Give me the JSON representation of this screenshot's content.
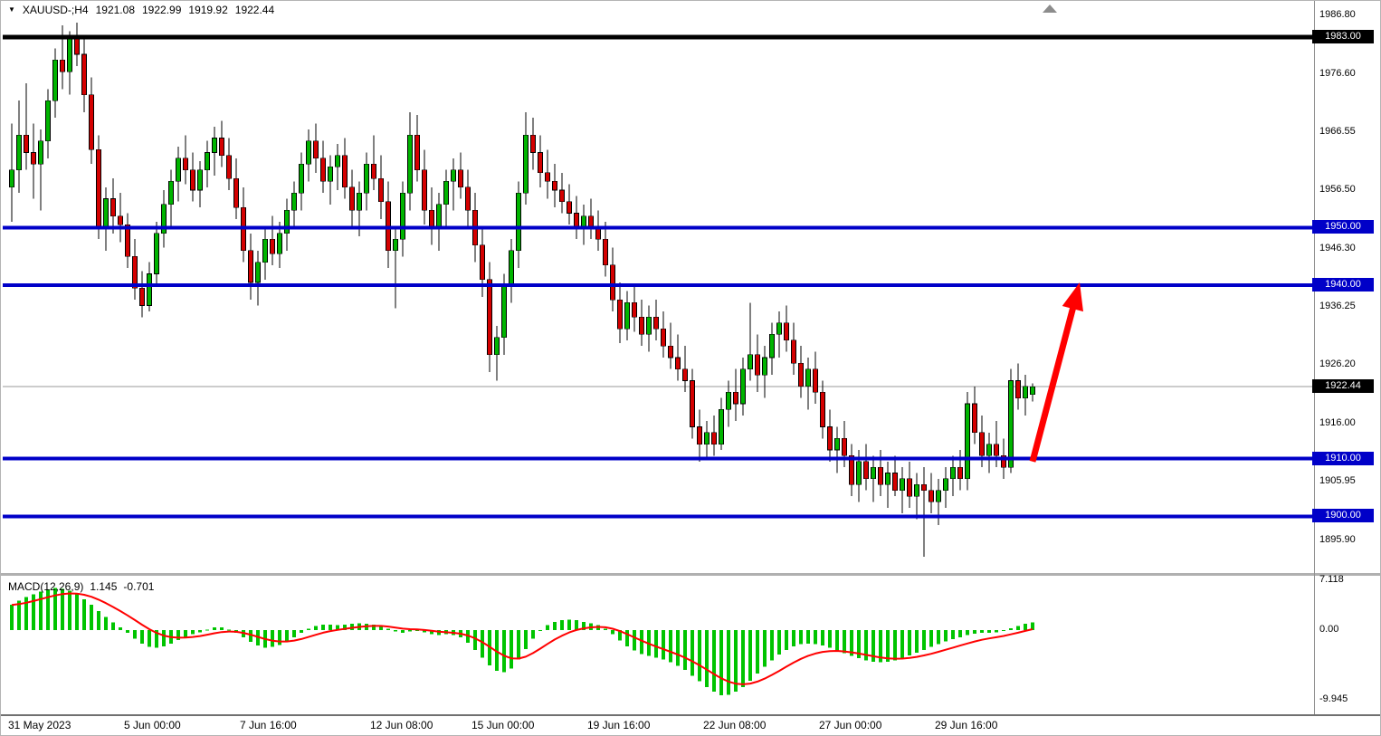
{
  "colors": {
    "bull": "#00B400",
    "bear": "#D40000",
    "wick": "#000000",
    "histogram": "#00C400",
    "signal_line": "#FF0000",
    "level_blue": "#0000C8",
    "level_black": "#000000",
    "current_price_line": "#999999",
    "badge_text": "#FFFFFF",
    "arrow": "#FF0000"
  },
  "chart_data": [
    {
      "type": "candlestick",
      "symbol_label": "XAUUSD-;H4",
      "dropdown_icon": "▼",
      "ohlc_display": {
        "open": "1921.08",
        "high": "1922.99",
        "low": "1919.92",
        "close": "1922.44"
      },
      "ylim": [
        1890.5,
        1988.0
      ],
      "grid": false,
      "legend_position": "none",
      "y_ticks": [
        "1986.80",
        "1976.60",
        "1966.55",
        "1956.50",
        "1946.30",
        "1936.25",
        "1926.20",
        "1916.00",
        "1905.95",
        "1895.90"
      ],
      "x_ticks": [
        {
          "i": 0,
          "label": "31 May 2023"
        },
        {
          "i": 16,
          "label": "5 Jun 00:00"
        },
        {
          "i": 32,
          "label": "7 Jun 16:00"
        },
        {
          "i": 50,
          "label": "12 Jun 08:00"
        },
        {
          "i": 64,
          "label": "15 Jun 00:00"
        },
        {
          "i": 80,
          "label": "19 Jun 16:00"
        },
        {
          "i": 96,
          "label": "22 Jun 08:00"
        },
        {
          "i": 112,
          "label": "27 Jun 00:00"
        },
        {
          "i": 128,
          "label": "29 Jun 16:00"
        }
      ],
      "levels": [
        {
          "label": "1983.00",
          "value": 1983.0,
          "style": "black"
        },
        {
          "label": "1950.00",
          "value": 1950.0,
          "style": "blue"
        },
        {
          "label": "1940.00",
          "value": 1940.0,
          "style": "blue"
        },
        {
          "label": "1910.00",
          "value": 1910.0,
          "style": "blue"
        },
        {
          "label": "1900.00",
          "value": 1900.0,
          "style": "blue"
        }
      ],
      "current_price": {
        "label": "1922.44",
        "value": 1922.44
      },
      "annotation_arrow": {
        "from": {
          "i": 141,
          "price": 1909.5
        },
        "to": {
          "i": 147.5,
          "price": 1940.5
        }
      },
      "candles": [
        [
          1957,
          1968,
          1951,
          1960
        ],
        [
          1960,
          1972,
          1956,
          1966
        ],
        [
          1966,
          1975,
          1960,
          1963
        ],
        [
          1963,
          1968,
          1955,
          1961
        ],
        [
          1961,
          1967,
          1953,
          1965
        ],
        [
          1965,
          1974,
          1962,
          1972
        ],
        [
          1972,
          1981,
          1969,
          1979
        ],
        [
          1979,
          1985,
          1974,
          1977
        ],
        [
          1977,
          1984,
          1973,
          1983
        ],
        [
          1983,
          1985.5,
          1978,
          1980
        ],
        [
          1980,
          1983,
          1970,
          1973
        ],
        [
          1973,
          1976,
          1961,
          1963.5
        ],
        [
          1963.5,
          1966,
          1948,
          1950
        ],
        [
          1950,
          1957,
          1946,
          1955
        ],
        [
          1955,
          1958.5,
          1949,
          1952
        ],
        [
          1952,
          1956,
          1947.5,
          1950.5
        ],
        [
          1950.5,
          1952.5,
          1943,
          1945
        ],
        [
          1945,
          1948,
          1937.5,
          1939.5
        ],
        [
          1939.5,
          1942.5,
          1934.5,
          1936.5
        ],
        [
          1936.5,
          1944,
          1935.5,
          1942
        ],
        [
          1942,
          1951,
          1940,
          1949
        ],
        [
          1949,
          1956.5,
          1946.5,
          1954
        ],
        [
          1954,
          1960,
          1950,
          1958
        ],
        [
          1958,
          1964,
          1954.5,
          1962
        ],
        [
          1962,
          1966,
          1957.5,
          1960
        ],
        [
          1960,
          1963,
          1954.5,
          1956.5
        ],
        [
          1956.5,
          1961.5,
          1953.5,
          1960
        ],
        [
          1960,
          1965,
          1957,
          1963
        ],
        [
          1963,
          1967.5,
          1959,
          1965.5
        ],
        [
          1965.5,
          1968.5,
          1960.5,
          1962.5
        ],
        [
          1962.5,
          1965.5,
          1956.5,
          1958.5
        ],
        [
          1958.5,
          1962,
          1951.5,
          1953.5
        ],
        [
          1953.5,
          1957,
          1944,
          1946
        ],
        [
          1946,
          1949,
          1937.5,
          1940.5
        ],
        [
          1940.5,
          1946,
          1936.5,
          1944
        ],
        [
          1944,
          1950,
          1941,
          1948
        ],
        [
          1948,
          1952,
          1943.5,
          1945.5
        ],
        [
          1945.5,
          1951,
          1943,
          1949
        ],
        [
          1949,
          1955,
          1946,
          1953
        ],
        [
          1953,
          1958,
          1950,
          1956
        ],
        [
          1956,
          1963,
          1953,
          1961
        ],
        [
          1961,
          1967,
          1958,
          1965
        ],
        [
          1965,
          1968,
          1959.5,
          1962
        ],
        [
          1962,
          1965,
          1956,
          1958
        ],
        [
          1958,
          1962.5,
          1954,
          1960.5
        ],
        [
          1960.5,
          1964.5,
          1956.5,
          1962.5
        ],
        [
          1962.5,
          1965.5,
          1955,
          1957
        ],
        [
          1957,
          1960,
          1950,
          1953
        ],
        [
          1953,
          1958,
          1948.5,
          1956
        ],
        [
          1956,
          1963,
          1953,
          1961
        ],
        [
          1961,
          1966,
          1956.5,
          1958.5
        ],
        [
          1958.5,
          1962.5,
          1951.5,
          1954.5
        ],
        [
          1954.5,
          1958,
          1943,
          1946
        ],
        [
          1946,
          1950,
          1936,
          1948
        ],
        [
          1948,
          1958,
          1945,
          1956
        ],
        [
          1956,
          1970,
          1953,
          1966
        ],
        [
          1966,
          1969.5,
          1958,
          1960
        ],
        [
          1960,
          1963.5,
          1950.5,
          1953
        ],
        [
          1953,
          1957,
          1947,
          1950
        ],
        [
          1950,
          1956,
          1946,
          1954
        ],
        [
          1954,
          1960,
          1950,
          1958
        ],
        [
          1958,
          1962,
          1953,
          1960
        ],
        [
          1960,
          1963,
          1955,
          1957
        ],
        [
          1957,
          1960,
          1950,
          1953
        ],
        [
          1953,
          1956,
          1944,
          1947
        ],
        [
          1947,
          1950,
          1938,
          1941
        ],
        [
          1941,
          1944,
          1925,
          1928
        ],
        [
          1928,
          1933,
          1923.5,
          1931
        ],
        [
          1931,
          1942,
          1928,
          1940
        ],
        [
          1940,
          1948,
          1937,
          1946
        ],
        [
          1946,
          1958,
          1943,
          1956
        ],
        [
          1956,
          1970,
          1954,
          1966
        ],
        [
          1966,
          1969,
          1960,
          1963
        ],
        [
          1963,
          1966,
          1957,
          1959.5
        ],
        [
          1959.5,
          1963.5,
          1955,
          1958
        ],
        [
          1958,
          1961,
          1953.5,
          1956.5
        ],
        [
          1956.5,
          1959.5,
          1952.5,
          1954.5
        ],
        [
          1954.5,
          1957.5,
          1950.5,
          1952.5
        ],
        [
          1952.5,
          1955.5,
          1948,
          1950
        ],
        [
          1950,
          1954,
          1947,
          1952
        ],
        [
          1952,
          1955,
          1948,
          1950
        ],
        [
          1950,
          1953,
          1946,
          1948
        ],
        [
          1948,
          1951,
          1941.5,
          1943.5
        ],
        [
          1943.5,
          1946.5,
          1935.5,
          1937.5
        ],
        [
          1937.5,
          1940.5,
          1930,
          1932.5
        ],
        [
          1932.5,
          1939,
          1930.5,
          1937
        ],
        [
          1937,
          1940,
          1932,
          1934.5
        ],
        [
          1934.5,
          1937.5,
          1929.5,
          1931.5
        ],
        [
          1931.5,
          1936.5,
          1928.5,
          1934.5
        ],
        [
          1934.5,
          1937.5,
          1930.5,
          1932.5
        ],
        [
          1932.5,
          1935.5,
          1927.5,
          1929.5
        ],
        [
          1929.5,
          1933.5,
          1925.5,
          1927.5
        ],
        [
          1927.5,
          1931.5,
          1923.5,
          1925.5
        ],
        [
          1925.5,
          1929.5,
          1921.5,
          1923.5
        ],
        [
          1923.5,
          1925.5,
          1913.5,
          1915.5
        ],
        [
          1915.5,
          1918.5,
          1909.5,
          1912.5
        ],
        [
          1912.5,
          1916.5,
          1909.8,
          1914.5
        ],
        [
          1914.5,
          1917.5,
          1910.5,
          1912.5
        ],
        [
          1912.5,
          1920.5,
          1911.5,
          1918.5
        ],
        [
          1918.5,
          1923.5,
          1915.5,
          1921.5
        ],
        [
          1921.5,
          1925.5,
          1916.5,
          1919.5
        ],
        [
          1919.5,
          1927.5,
          1917.5,
          1925.5
        ],
        [
          1925.5,
          1937,
          1923.5,
          1928
        ],
        [
          1928,
          1931.5,
          1921.5,
          1924.5
        ],
        [
          1924.5,
          1929.5,
          1920.5,
          1927.5
        ],
        [
          1927.5,
          1933.5,
          1924.5,
          1931.5
        ],
        [
          1931.5,
          1935.5,
          1927.5,
          1933.5
        ],
        [
          1933.5,
          1936.5,
          1928.5,
          1930.5
        ],
        [
          1930.5,
          1933.5,
          1924.5,
          1926.5
        ],
        [
          1926.5,
          1929.5,
          1920.5,
          1922.5
        ],
        [
          1922.5,
          1927.5,
          1918.5,
          1925.5
        ],
        [
          1925.5,
          1928.5,
          1919.5,
          1921.5
        ],
        [
          1921.5,
          1923.5,
          1913.5,
          1915.5
        ],
        [
          1915.5,
          1918.5,
          1909.5,
          1911.5
        ],
        [
          1911.5,
          1915.5,
          1907.5,
          1913.5
        ],
        [
          1913.5,
          1916.5,
          1908.5,
          1910.5
        ],
        [
          1910.5,
          1912.5,
          1903.5,
          1905.5
        ],
        [
          1905.5,
          1911.5,
          1902.5,
          1909.5
        ],
        [
          1909.5,
          1912.5,
          1904.5,
          1906.5
        ],
        [
          1906.5,
          1910.5,
          1902.5,
          1908.5
        ],
        [
          1908.5,
          1911.5,
          1903.5,
          1905.5
        ],
        [
          1905.5,
          1909.5,
          1901.5,
          1907.5
        ],
        [
          1907.5,
          1910.5,
          1903.5,
          1904.5
        ],
        [
          1904.5,
          1908.5,
          1900.5,
          1906.5
        ],
        [
          1906.5,
          1909.5,
          1901.5,
          1903.5
        ],
        [
          1903.5,
          1907.5,
          1899.5,
          1905.5
        ],
        [
          1905.5,
          1908.5,
          1893,
          1904.5
        ],
        [
          1904.5,
          1907.5,
          1900.5,
          1902.5
        ],
        [
          1902.5,
          1906.5,
          1898.5,
          1904.5
        ],
        [
          1904.5,
          1908.5,
          1901.5,
          1906.5
        ],
        [
          1906.5,
          1910.5,
          1903.5,
          1908.5
        ],
        [
          1908.5,
          1911.5,
          1904.5,
          1906.5
        ],
        [
          1906.5,
          1921.5,
          1904.5,
          1919.5
        ],
        [
          1919.5,
          1922.5,
          1912.5,
          1914.5
        ],
        [
          1914.5,
          1917.5,
          1908.5,
          1910.5
        ],
        [
          1910.5,
          1914.5,
          1907.5,
          1912.5
        ],
        [
          1912.5,
          1916.5,
          1908.5,
          1910.5
        ],
        [
          1910.5,
          1913.5,
          1906.5,
          1908.5
        ],
        [
          1908.5,
          1925.5,
          1907.5,
          1923.5
        ],
        [
          1923.5,
          1926.5,
          1918.5,
          1920.5
        ],
        [
          1920.5,
          1924.5,
          1917.5,
          1922.5
        ],
        [
          1921.08,
          1922.99,
          1919.92,
          1922.44
        ]
      ]
    },
    {
      "type": "bar",
      "indicator_label": "MACD(12,26,9)",
      "macd_value": "1.145",
      "signal_value": "-0.701",
      "ylim": [
        -12.0,
        7.5
      ],
      "y_ticks": [
        "7.118",
        "0.00",
        "-9.945"
      ],
      "signal_ema_period": 9,
      "values": [
        3.6,
        4.2,
        4.7,
        5.1,
        5.5,
        5.8,
        6.0,
        5.9,
        5.6,
        5.1,
        4.4,
        3.6,
        2.7,
        1.9,
        1.1,
        0.4,
        -0.4,
        -1.2,
        -1.9,
        -2.4,
        -2.5,
        -2.3,
        -1.9,
        -1.4,
        -1.0,
        -0.6,
        -0.3,
        0.1,
        0.4,
        0.4,
        0.1,
        -0.4,
        -1.0,
        -1.7,
        -2.2,
        -2.5,
        -2.4,
        -2.1,
        -1.6,
        -1.0,
        -0.4,
        0.2,
        0.6,
        0.8,
        0.8,
        0.7,
        0.8,
        0.9,
        1.0,
        0.9,
        0.8,
        0.6,
        0.2,
        -0.2,
        -0.4,
        -0.2,
        0.0,
        -0.3,
        -0.6,
        -0.7,
        -0.6,
        -0.7,
        -1.0,
        -1.8,
        -2.8,
        -3.9,
        -5.0,
        -5.8,
        -6.0,
        -5.5,
        -4.2,
        -2.7,
        -1.2,
        -0.1,
        0.7,
        1.2,
        1.4,
        1.5,
        1.4,
        1.2,
        1.0,
        0.7,
        0.2,
        -0.6,
        -1.5,
        -2.3,
        -2.9,
        -3.4,
        -3.7,
        -3.9,
        -4.2,
        -4.6,
        -5.1,
        -5.7,
        -6.5,
        -7.3,
        -8.1,
        -8.8,
        -9.3,
        -9.2,
        -8.8,
        -8.1,
        -7.2,
        -6.2,
        -5.2,
        -4.3,
        -3.5,
        -2.8,
        -2.3,
        -2.0,
        -1.9,
        -2.0,
        -2.2,
        -2.5,
        -2.9,
        -3.3,
        -3.7,
        -4.0,
        -4.3,
        -4.5,
        -4.6,
        -4.5,
        -4.3,
        -4.0,
        -3.6,
        -3.2,
        -2.8,
        -2.4,
        -2.0,
        -1.6,
        -1.3,
        -1.0,
        -0.7,
        -0.5,
        -0.4,
        -0.4,
        -0.3,
        -0.1,
        0.3,
        0.6,
        0.9,
        1.1
      ]
    }
  ]
}
